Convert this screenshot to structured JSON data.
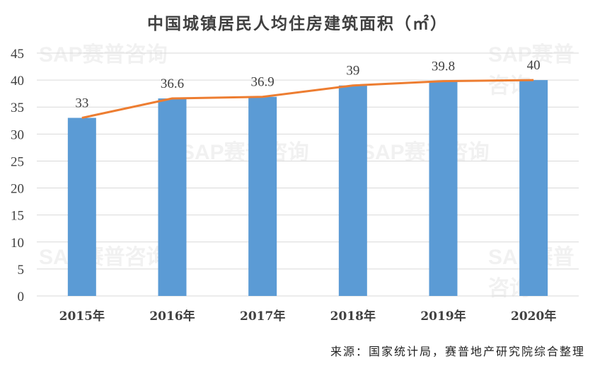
{
  "chart_data": {
    "type": "bar",
    "title": "中国城镇居民人均住房建筑面积（㎡）",
    "categories": [
      "2015年",
      "2016年",
      "2017年",
      "2018年",
      "2019年",
      "2020年"
    ],
    "values": [
      33,
      36.6,
      36.9,
      39,
      39.8,
      40
    ],
    "value_labels": [
      "33",
      "36.6",
      "36.9",
      "39",
      "39.8",
      "40"
    ],
    "line_overlay": true,
    "ylim": [
      0,
      45
    ],
    "yticks": [
      0,
      5,
      10,
      15,
      20,
      25,
      30,
      35,
      40,
      45
    ],
    "ytick_labels": [
      "0",
      "5",
      "10",
      "15",
      "20",
      "25",
      "30",
      "35",
      "40",
      "45"
    ],
    "grid": true,
    "xlabel": "",
    "ylabel": "",
    "colors": {
      "bar": "#5b9bd5",
      "line": "#ed7d31",
      "grid": "#d9d9d9"
    }
  },
  "source": "来源：国家统计局，赛普地产研究院综合整理",
  "watermark": "SAP赛普咨询"
}
